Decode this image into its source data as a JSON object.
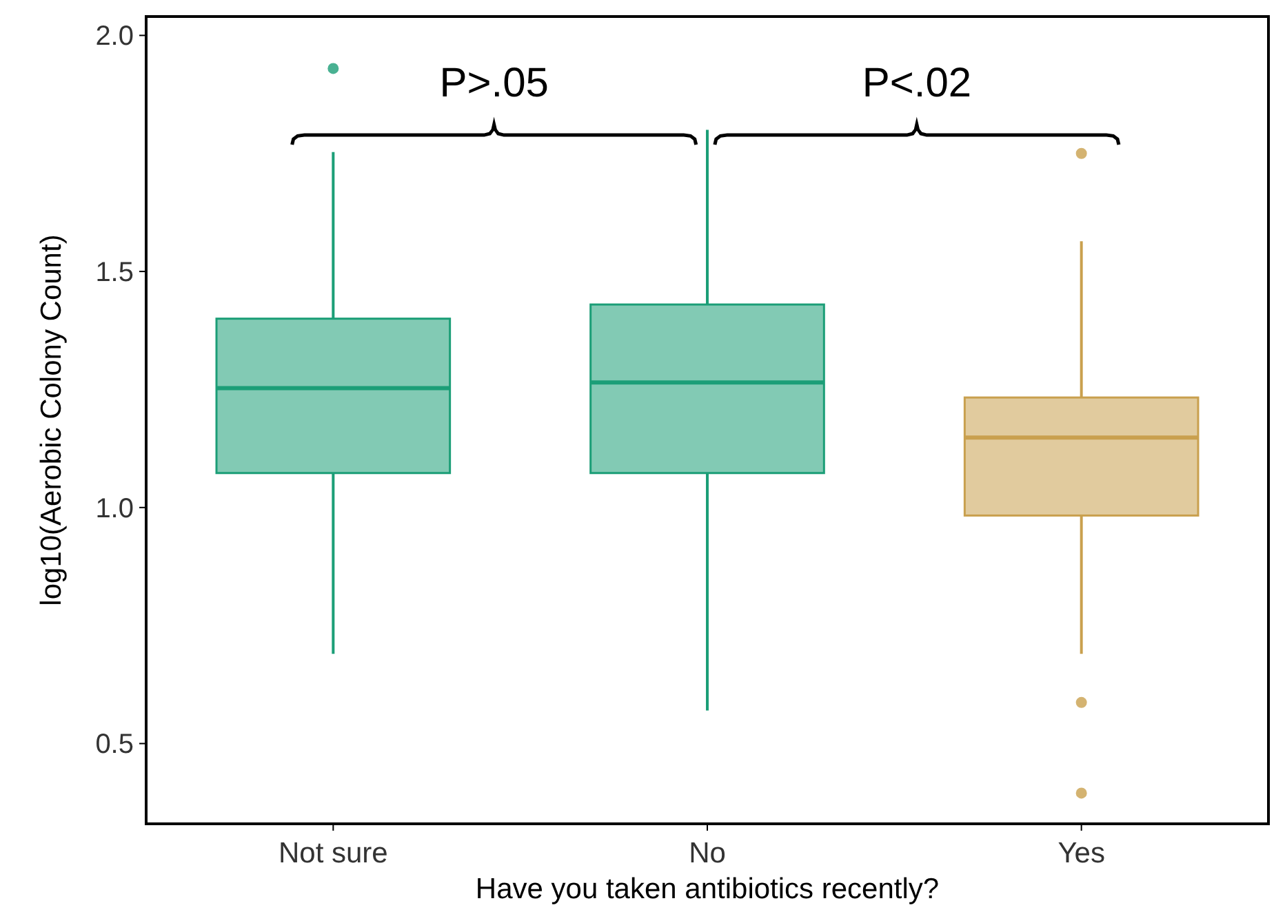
{
  "chart_data": {
    "type": "box",
    "xlabel": "Have you taken antibiotics recently?",
    "ylabel": "log10(Aerobic Colony Count)",
    "categories": [
      "Not sure",
      "No",
      "Yes"
    ],
    "colors": [
      "#1b9e77",
      "#1b9e77",
      "#c9a04e"
    ],
    "boxes": [
      {
        "low": 0.69,
        "q1": 1.073,
        "median": 1.253,
        "q3": 1.4,
        "high": 1.753,
        "outliers": [
          1.93
        ]
      },
      {
        "low": 0.57,
        "q1": 1.073,
        "median": 1.265,
        "q3": 1.43,
        "high": 1.8
      },
      {
        "low": 0.69,
        "q1": 0.983,
        "median": 1.148,
        "q3": 1.233,
        "high": 1.564,
        "outliers": [
          1.75,
          0.587,
          0.395
        ]
      }
    ],
    "ylim": [
      0.33,
      2.04
    ],
    "yticks": [
      0.5,
      {
        "value": 1,
        "label": "1.0"
      },
      1.5,
      {
        "value": 2,
        "label": "2.0"
      }
    ],
    "grid": false,
    "annotations": [
      "P>.05",
      "P<.02"
    ]
  }
}
